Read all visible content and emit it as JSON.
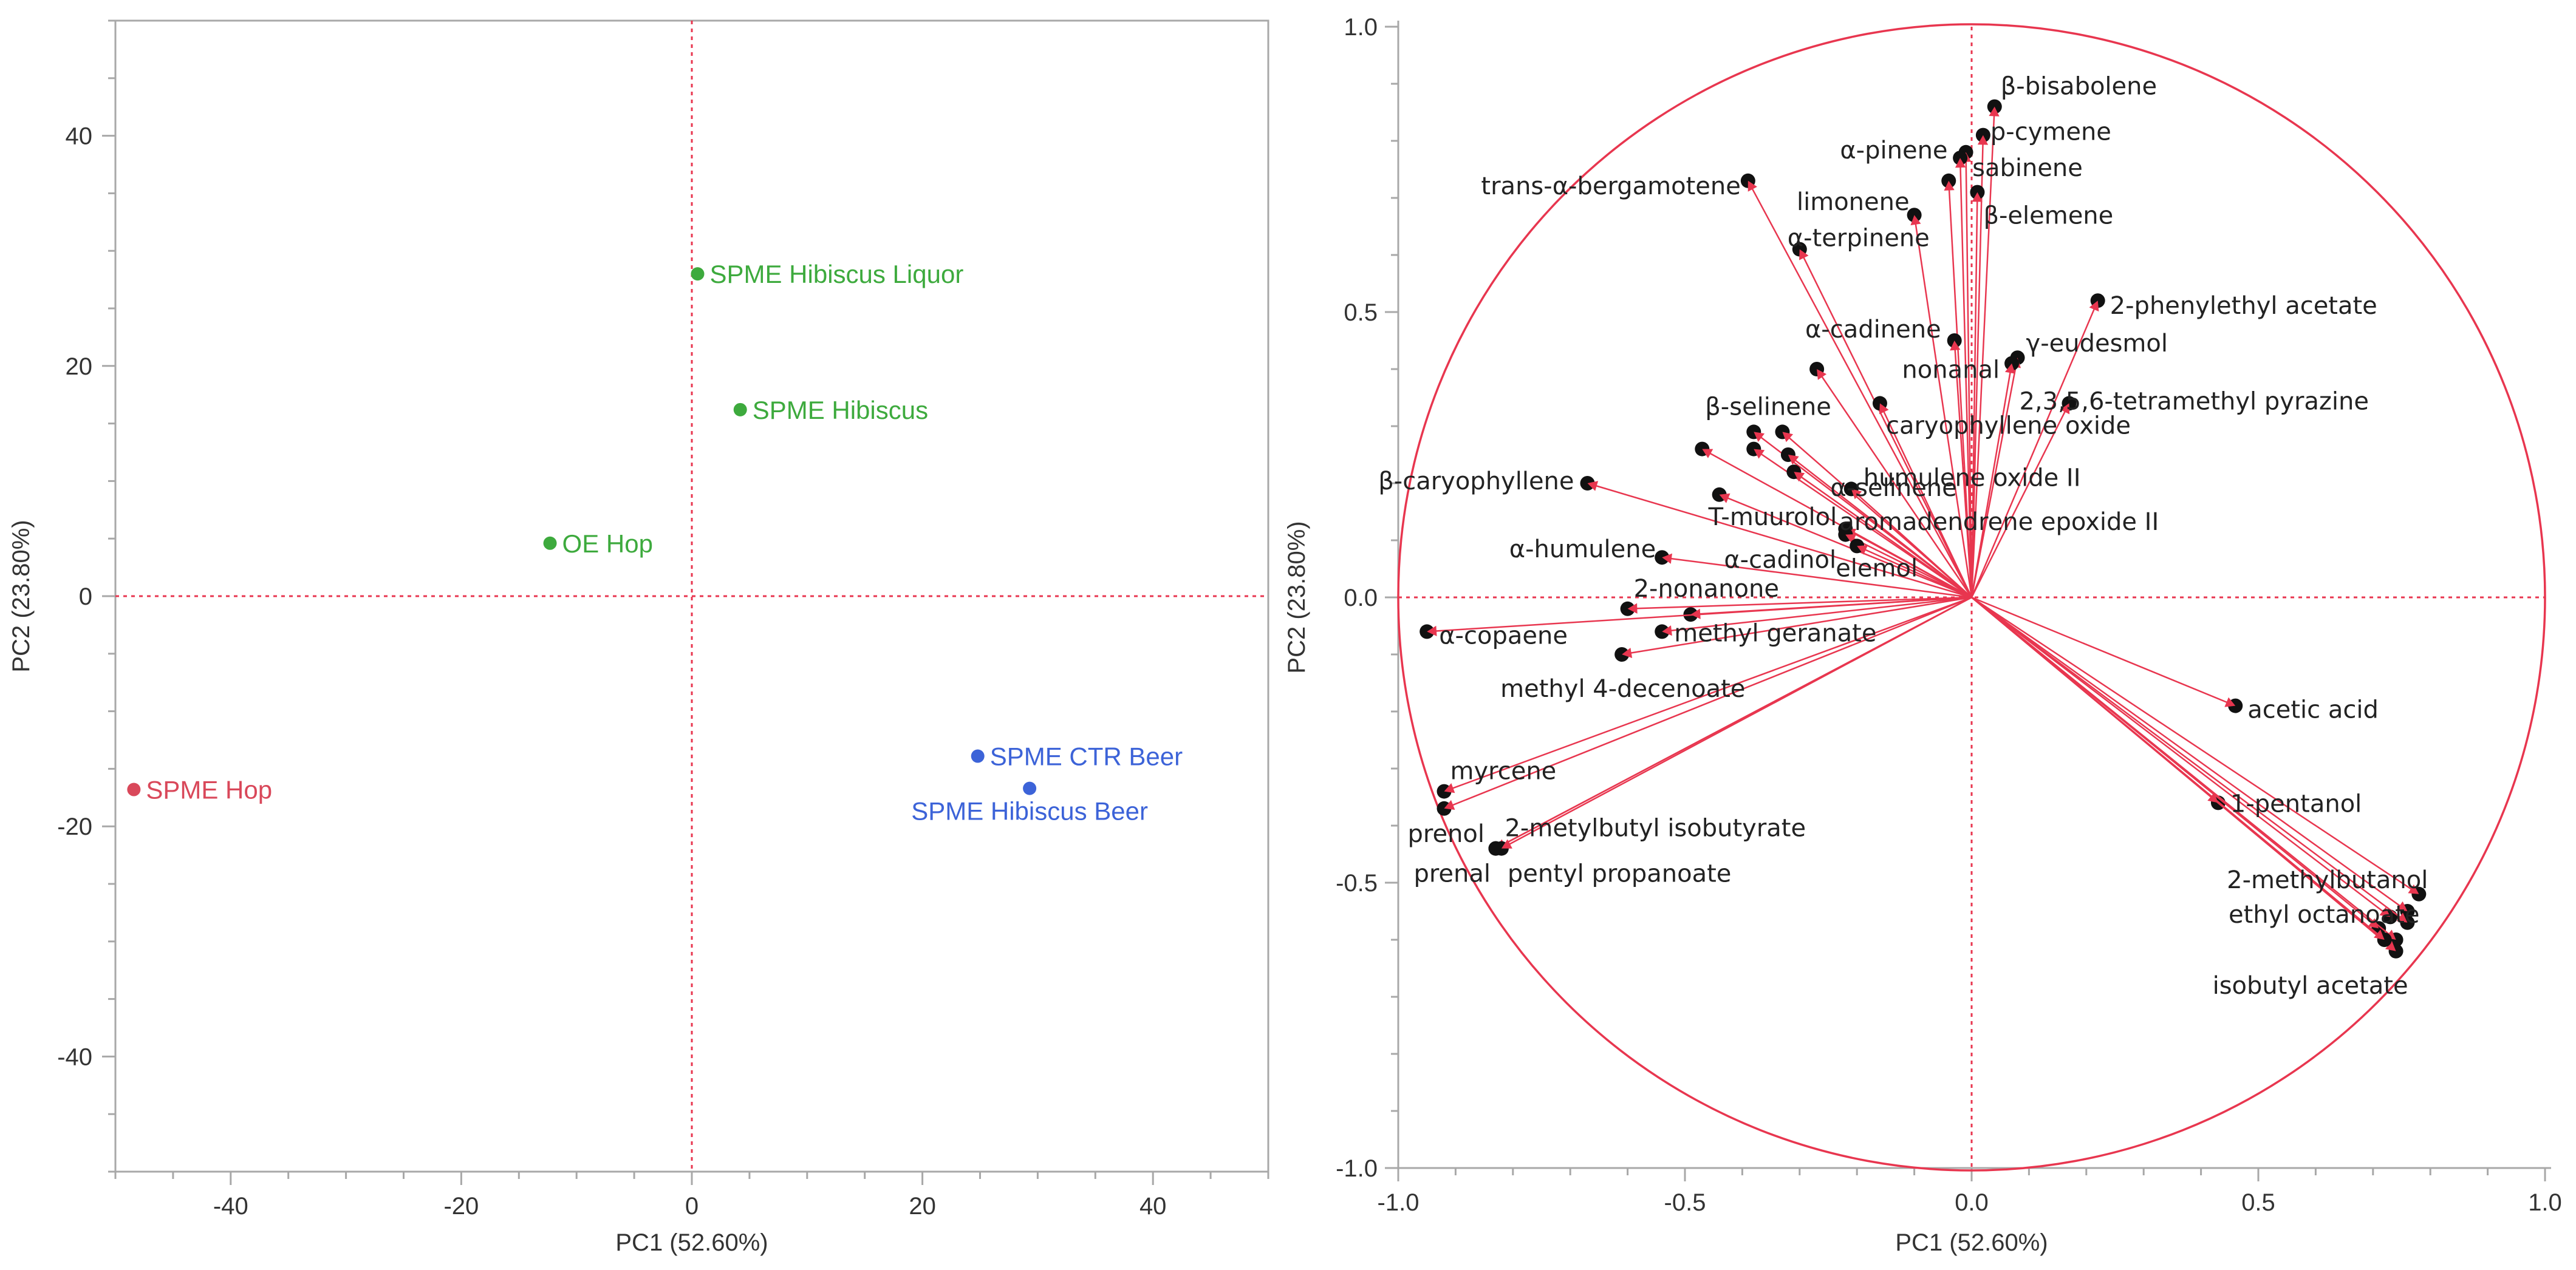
{
  "chart_data": [
    {
      "type": "scatter",
      "xlabel": "PC1 (52.60%)",
      "ylabel": "PC2 (23.80%)",
      "xlim": [
        -50,
        50
      ],
      "ylim": [
        -50,
        50
      ],
      "xticks": [
        -40,
        -20,
        0,
        20,
        40
      ],
      "yticks": [
        -40,
        -20,
        0,
        20,
        40
      ],
      "reference_lines": {
        "x": 0,
        "y": 0,
        "style": "dotted red"
      },
      "points": [
        {
          "label": "SPME Hibiscus Liquor",
          "x": 0.5,
          "y": 28,
          "color": "#3daa3d"
        },
        {
          "label": "SPME Hibiscus",
          "x": 4.2,
          "y": 16.2,
          "color": "#3daa3d"
        },
        {
          "label": "OE Hop",
          "x": -12.3,
          "y": 4.6,
          "color": "#3daa3d"
        },
        {
          "label": "SPME Hop",
          "x": -48.4,
          "y": -16.8,
          "color": "#d9485a"
        },
        {
          "label": "SPME CTR Beer",
          "x": 24.8,
          "y": -13.9,
          "color": "#3c63d8"
        },
        {
          "label": "SPME Hibiscus Beer",
          "x": 29.3,
          "y": -16.7,
          "color": "#3c63d8"
        }
      ]
    },
    {
      "type": "scatter",
      "subtype": "loading-vectors",
      "xlabel": "PC1 (52.60%)",
      "ylabel": "PC2 (23.80%)",
      "xlim": [
        -1.0,
        1.0
      ],
      "ylim": [
        -1.0,
        1.0
      ],
      "xticks": [
        -1.0,
        -0.5,
        0.0,
        0.5,
        1.0
      ],
      "yticks": [
        -1.0,
        -0.5,
        0.0,
        0.5,
        1.0
      ],
      "xtick_labels": [
        "-1.0",
        "-0.5",
        "0.0",
        "0.5",
        "1.0"
      ],
      "ytick_labels": [
        "-1.0",
        "-0.5",
        "0.0",
        "0.5",
        "1.0"
      ],
      "reference_lines": {
        "x": 0,
        "y": 0,
        "style": "dotted red"
      },
      "unit_circle": true,
      "vector_color": "#e8364f",
      "loadings": [
        {
          "label": "β-bisabolene",
          "x": 0.04,
          "y": 0.86
        },
        {
          "label": "p-cymene",
          "x": 0.02,
          "y": 0.81
        },
        {
          "label": "α-pinene",
          "x": -0.01,
          "y": 0.78
        },
        {
          "label": "sabinene",
          "x": -0.02,
          "y": 0.77
        },
        {
          "label": "",
          "x": -0.04,
          "y": 0.73
        },
        {
          "label": "β-elemene",
          "x": 0.01,
          "y": 0.71
        },
        {
          "label": "trans-α-bergamotene",
          "x": -0.39,
          "y": 0.73
        },
        {
          "label": "limonene",
          "x": -0.1,
          "y": 0.67
        },
        {
          "label": "α-terpinene",
          "x": -0.3,
          "y": 0.61
        },
        {
          "label": "2-phenylethyl acetate",
          "x": 0.22,
          "y": 0.52
        },
        {
          "label": "α-cadinene",
          "x": -0.03,
          "y": 0.45
        },
        {
          "label": "γ-eudesmol",
          "x": 0.08,
          "y": 0.42
        },
        {
          "label": "nonanal",
          "x": 0.07,
          "y": 0.41
        },
        {
          "label": "2,3,5,6-tetramethyl pyrazine",
          "x": 0.17,
          "y": 0.34
        },
        {
          "label": "",
          "x": -0.27,
          "y": 0.4
        },
        {
          "label": "caryophyllene oxide",
          "x": -0.16,
          "y": 0.34
        },
        {
          "label": "β-selinene",
          "x": -0.38,
          "y": 0.29
        },
        {
          "label": "",
          "x": -0.33,
          "y": 0.29
        },
        {
          "label": "",
          "x": -0.38,
          "y": 0.26
        },
        {
          "label": "",
          "x": -0.32,
          "y": 0.25
        },
        {
          "label": "",
          "x": -0.47,
          "y": 0.26
        },
        {
          "label": "α-selinene",
          "x": -0.31,
          "y": 0.22
        },
        {
          "label": "humulene oxide II",
          "x": -0.21,
          "y": 0.19
        },
        {
          "label": "β-caryophyllene",
          "x": -0.67,
          "y": 0.2
        },
        {
          "label": "T-muurolol",
          "x": -0.44,
          "y": 0.18
        },
        {
          "label": "aromadendrene epoxide II",
          "x": -0.22,
          "y": 0.12
        },
        {
          "label": "α-humulene",
          "x": -0.54,
          "y": 0.07
        },
        {
          "label": "α-cadinol",
          "x": -0.22,
          "y": 0.11
        },
        {
          "label": "elemol",
          "x": -0.2,
          "y": 0.09
        },
        {
          "label": "2-nonanone",
          "x": -0.6,
          "y": -0.02
        },
        {
          "label": "",
          "x": -0.49,
          "y": -0.03
        },
        {
          "label": "methyl geranate",
          "x": -0.54,
          "y": -0.06
        },
        {
          "label": "α-copaene",
          "x": -0.95,
          "y": -0.06
        },
        {
          "label": "methyl 4-decenoate",
          "x": -0.61,
          "y": -0.1
        },
        {
          "label": "myrcene",
          "x": -0.92,
          "y": -0.34
        },
        {
          "label": "prenol",
          "x": -0.92,
          "y": -0.37
        },
        {
          "label": "2-metylbutyl isobutyrate",
          "x": -0.83,
          "y": -0.44
        },
        {
          "label": "prenal",
          "x": -0.83,
          "y": -0.44
        },
        {
          "label": "pentyl propanoate",
          "x": -0.82,
          "y": -0.44
        },
        {
          "label": "acetic acid",
          "x": 0.46,
          "y": -0.19
        },
        {
          "label": "1-pentanol",
          "x": 0.43,
          "y": -0.36
        },
        {
          "label": "2-methylbutanol",
          "x": 0.78,
          "y": -0.52
        },
        {
          "label": "",
          "x": 0.76,
          "y": -0.55
        },
        {
          "label": "",
          "x": 0.73,
          "y": -0.56
        },
        {
          "label": "ethyl octanoate",
          "x": 0.76,
          "y": -0.57
        },
        {
          "label": "",
          "x": 0.71,
          "y": -0.58
        },
        {
          "label": "",
          "x": 0.74,
          "y": -0.6
        },
        {
          "label": "isobutyl acetate",
          "x": 0.74,
          "y": -0.62
        },
        {
          "label": "",
          "x": 0.72,
          "y": -0.6
        }
      ]
    }
  ]
}
